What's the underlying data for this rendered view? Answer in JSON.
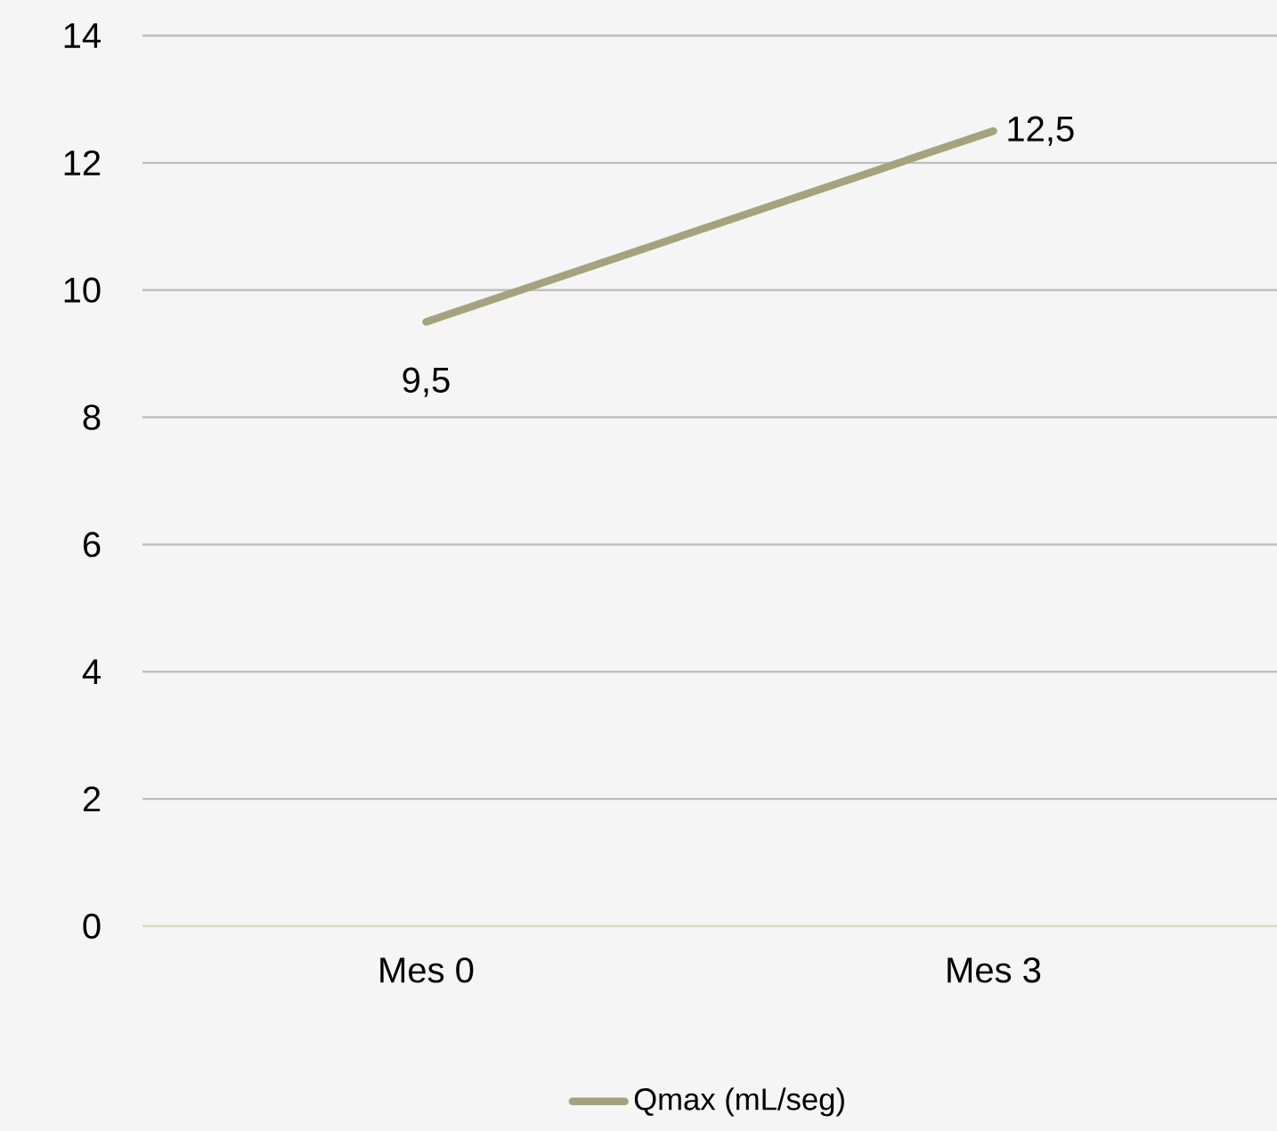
{
  "chart_data": {
    "type": "line",
    "categories": [
      "Mes 0",
      "Mes 3"
    ],
    "series": [
      {
        "name": "Qmax (mL/seg)",
        "color": "#a6a27e",
        "values": [
          9.5,
          12.5
        ],
        "value_labels": [
          "9,5",
          "12,5"
        ]
      }
    ],
    "ylim": [
      0,
      14
    ],
    "yticks": [
      0,
      2,
      4,
      6,
      8,
      10,
      12,
      14
    ],
    "grid": "y",
    "legend": "bottom",
    "marker": "none",
    "line_style": "solid"
  }
}
